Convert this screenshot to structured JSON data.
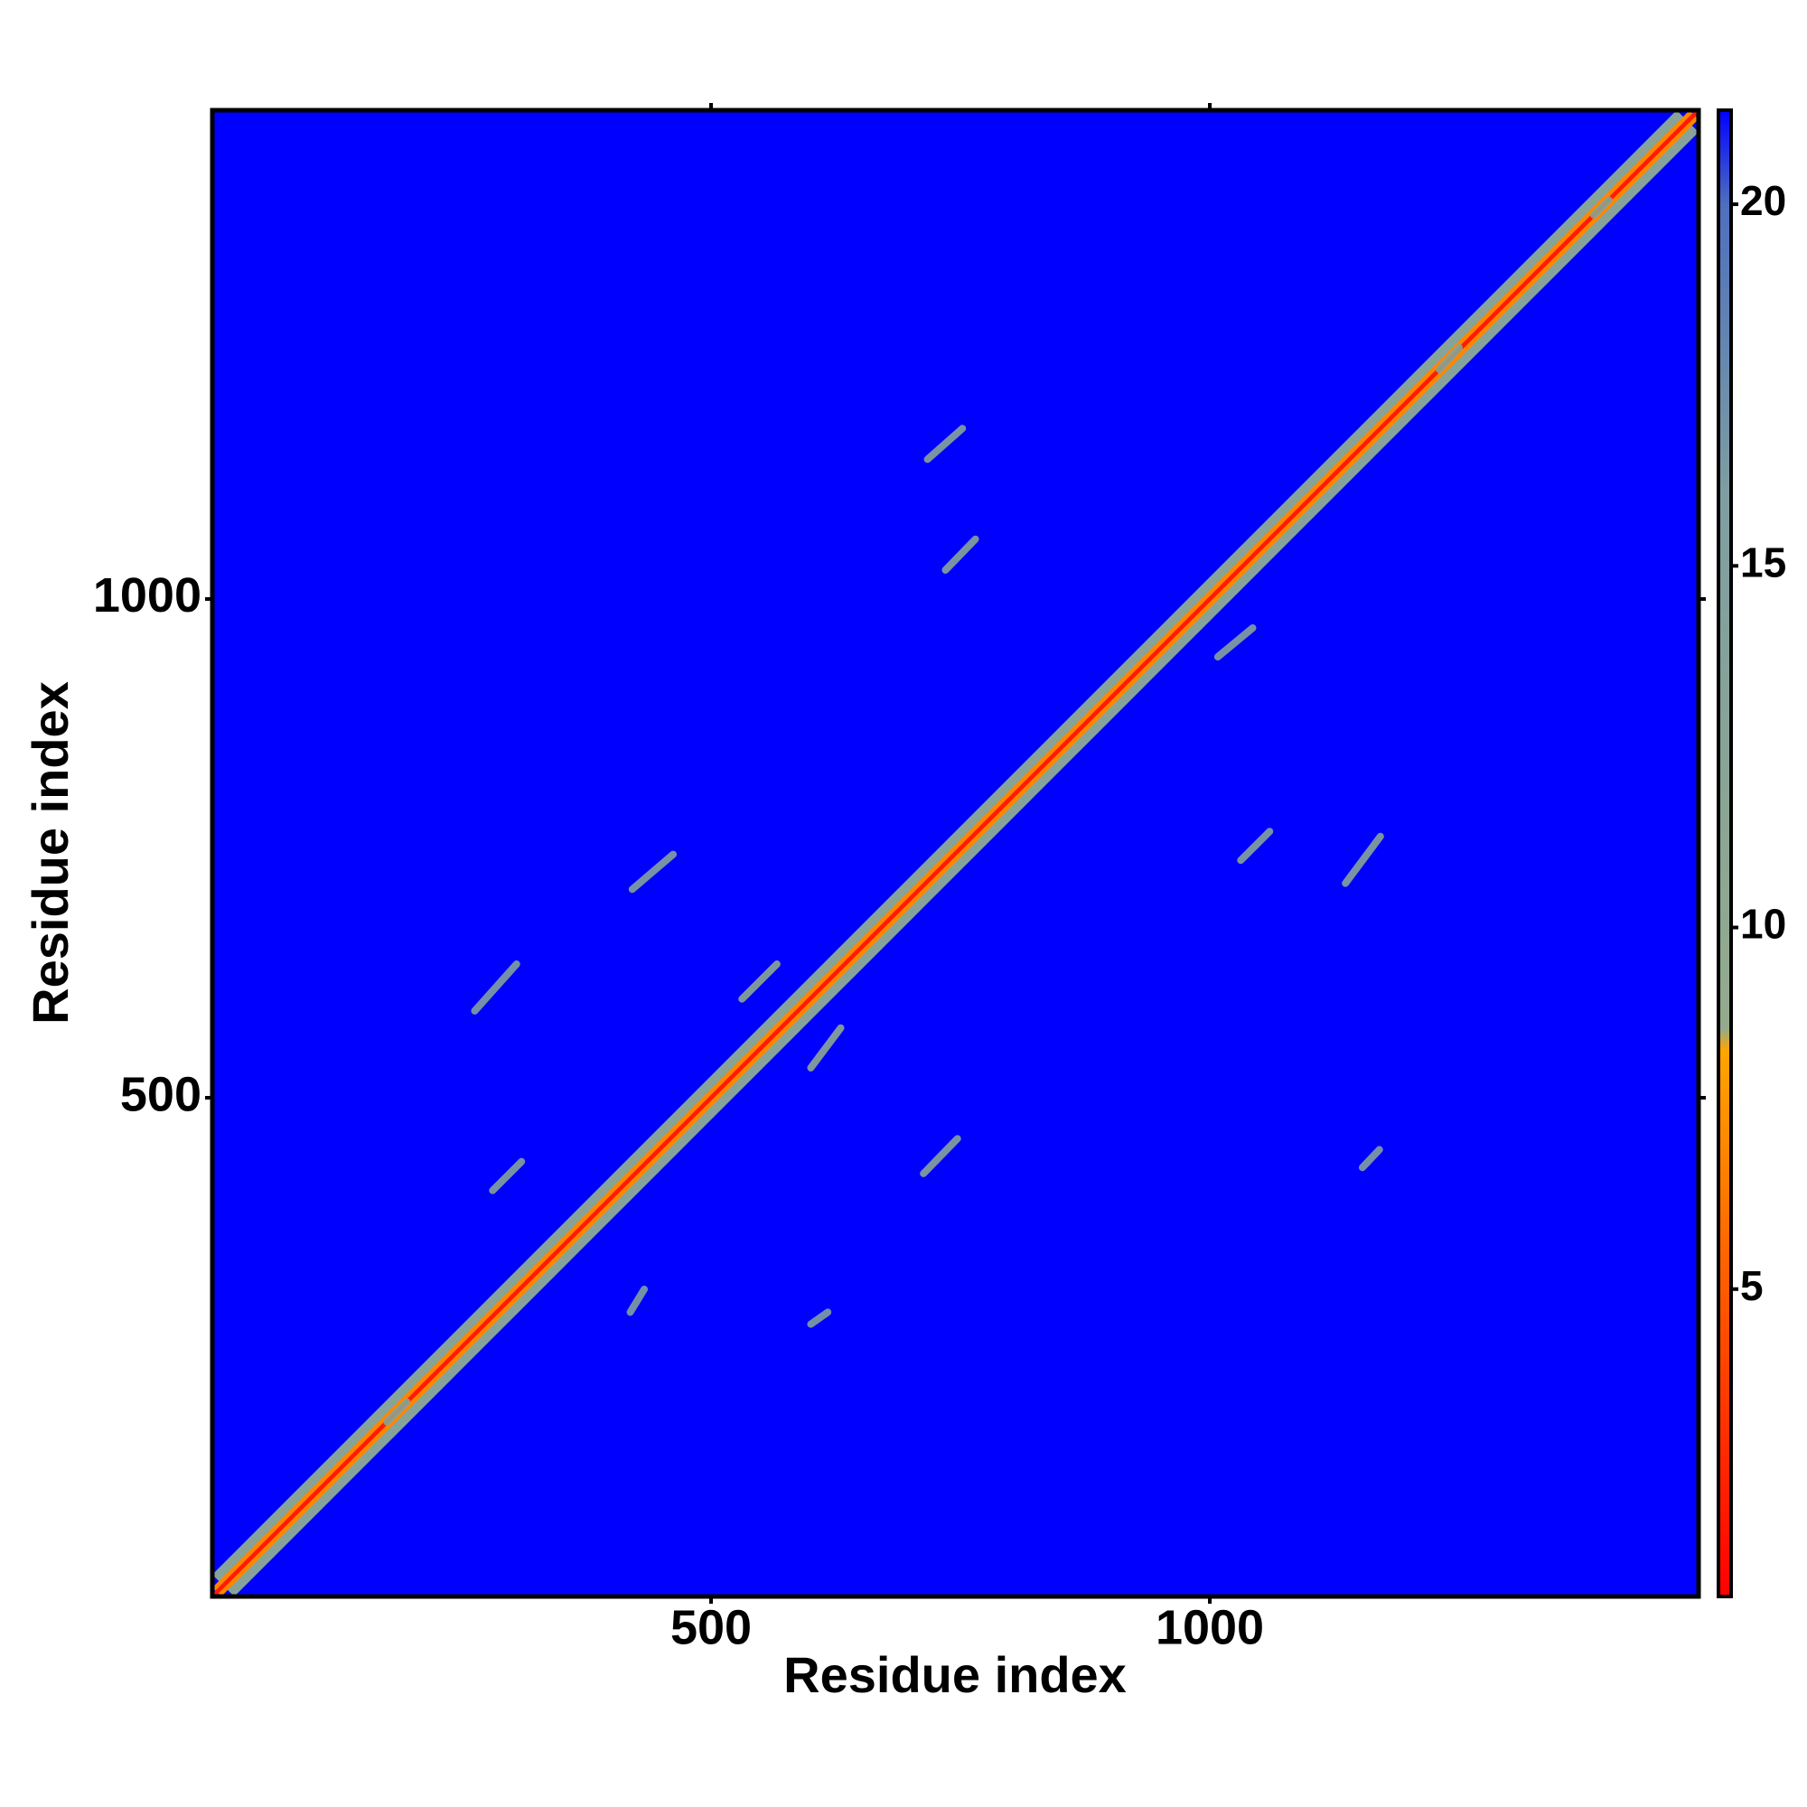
{
  "chart_data": {
    "type": "distance_map",
    "xlabel": "Residue index",
    "ylabel": "Residue index",
    "xlim": [
      0,
      1490
    ],
    "ylim": [
      0,
      1490
    ],
    "xticks": [
      500,
      1000
    ],
    "yticks": [
      500,
      1000
    ],
    "zlim": [
      0.75,
      21.3
    ],
    "zticks": [
      5,
      10,
      15,
      20
    ],
    "colorscale": [
      [
        0.75,
        "#ff0000"
      ],
      [
        5,
        "#ff5a00"
      ],
      [
        8.3,
        "#ffa500"
      ],
      [
        8.6,
        "#93ab8c"
      ],
      [
        16,
        "#7e9ea2"
      ],
      [
        20,
        "#4d6fbf"
      ],
      [
        21.3,
        "#0000ff"
      ]
    ],
    "background_value": 21.3,
    "diagonal": [
      {
        "offset": 22,
        "value": 13
      },
      {
        "offset": 9,
        "value": 7
      },
      {
        "offset": 3,
        "value": 2
      }
    ],
    "features": [
      {
        "x": [
          175,
          195
        ],
        "y": [
          175,
          195
        ],
        "value": 12
      },
      {
        "x": [
          1230,
          1250
        ],
        "y": [
          1230,
          1252
        ],
        "value": 12
      },
      {
        "x": [
          1385,
          1400
        ],
        "y": [
          1385,
          1400
        ],
        "value": 12
      },
      {
        "x": [
          717,
          752
        ],
        "y": [
          1140,
          1171
        ],
        "value": 13
      },
      {
        "x": [
          735,
          765
        ],
        "y": [
          1029,
          1060
        ],
        "value": 13
      },
      {
        "x": [
          421,
          462
        ],
        "y": [
          709,
          744
        ],
        "value": 14
      },
      {
        "x": [
          531,
          566
        ],
        "y": [
          599,
          634
        ],
        "value": 11
      },
      {
        "x": [
          600,
          630
        ],
        "y": [
          530,
          570
        ],
        "value": 11
      },
      {
        "x": [
          713,
          747
        ],
        "y": [
          424,
          459
        ],
        "value": 13
      },
      {
        "x": [
          600,
          617
        ],
        "y": [
          273,
          285
        ],
        "value": 15
      },
      {
        "x": [
          1136,
          1171
        ],
        "y": [
          715,
          762
        ],
        "value": 13
      },
      {
        "x": [
          1031,
          1060
        ],
        "y": [
          738,
          767
        ],
        "value": 14
      },
      {
        "x": [
          1153,
          1170
        ],
        "y": [
          430,
          448
        ],
        "value": 15
      },
      {
        "x": [
          281,
          310
        ],
        "y": [
          407,
          436
        ],
        "value": 14
      },
      {
        "x": [
          419,
          433
        ],
        "y": [
          285,
          308
        ],
        "value": 15
      },
      {
        "x": [
          1008,
          1043
        ],
        "y": [
          942,
          971
        ],
        "value": 14
      },
      {
        "x": [
          263,
          305
        ],
        "y": [
          587,
          634
        ],
        "value": 15
      }
    ]
  }
}
